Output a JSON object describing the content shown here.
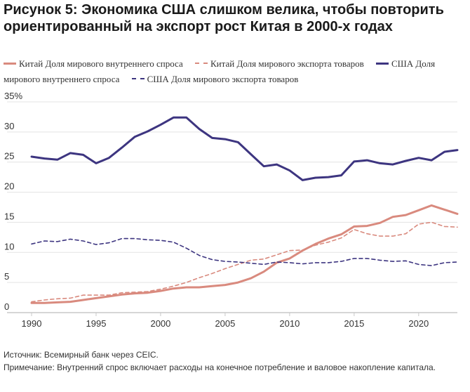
{
  "header": {
    "title": "Рисунок 5: Экономика США слишком велика, чтобы повторить ориентированный на экспорт рост Китая в 2000-х годах"
  },
  "footer": {
    "source": "Источник: Всемирный банк через CEIC.",
    "note": "Примечание: Внутренний спрос включает расходы на конечное потребление и валовое накопление капитала."
  },
  "colors": {
    "china": "#d98a7e",
    "usa": "#3d3580",
    "axis": "#c8c8c8",
    "grid": "#e3e3e3"
  },
  "chart_data": {
    "type": "line",
    "title": "",
    "xlabel": "",
    "ylabel": "",
    "xlim": [
      1990,
      2023
    ],
    "ylim": [
      0,
      35
    ],
    "grid": "horizontal",
    "legend_position": "top",
    "x_ticks": [
      "1990",
      "1995",
      "2000",
      "2005",
      "2010",
      "2015",
      "2020"
    ],
    "y_ticks": [
      "35%",
      "30",
      "25",
      "20",
      "15",
      "10",
      "5",
      "0"
    ],
    "y_tick_values": [
      35,
      30,
      25,
      20,
      15,
      10,
      5,
      0
    ],
    "x_tick_values": [
      1990,
      1995,
      2000,
      2005,
      2010,
      2015,
      2020
    ],
    "x": [
      1990,
      1991,
      1992,
      1993,
      1994,
      1995,
      1996,
      1997,
      1998,
      1999,
      2000,
      2001,
      2002,
      2003,
      2004,
      2005,
      2006,
      2007,
      2008,
      2009,
      2010,
      2011,
      2012,
      2013,
      2014,
      2015,
      2016,
      2017,
      2018,
      2019,
      2020,
      2021,
      2022,
      2023
    ],
    "series": [
      {
        "name": "Китай Доля мирового внутреннего спроса",
        "style": "solid",
        "color": "#d98a7e",
        "values": [
          1.6,
          1.6,
          1.7,
          1.8,
          2.1,
          2.4,
          2.7,
          3.0,
          3.2,
          3.3,
          3.6,
          4.0,
          4.2,
          4.2,
          4.4,
          4.6,
          5.0,
          5.7,
          6.8,
          8.3,
          9.0,
          10.3,
          11.4,
          12.3,
          13.0,
          14.3,
          14.4,
          14.9,
          15.9,
          16.2,
          17.0,
          17.8,
          17.1,
          16.4
        ]
      },
      {
        "name": "Китай Доля мирового экспорта товаров",
        "style": "dashed",
        "color": "#d98a7e",
        "values": [
          1.8,
          2.1,
          2.3,
          2.4,
          2.9,
          2.9,
          2.9,
          3.3,
          3.4,
          3.5,
          3.9,
          4.4,
          5.0,
          5.8,
          6.5,
          7.3,
          8.0,
          8.7,
          8.9,
          9.6,
          10.3,
          10.4,
          11.2,
          11.7,
          12.4,
          13.8,
          13.1,
          12.7,
          12.7,
          13.1,
          14.7,
          15.0,
          14.3,
          14.2
        ]
      },
      {
        "name": "США Доля мирового внутреннего спроса",
        "style": "solid",
        "color": "#3d3580",
        "values": [
          25.9,
          25.6,
          25.4,
          26.5,
          26.2,
          24.8,
          25.7,
          27.4,
          29.2,
          30.1,
          31.2,
          32.4,
          32.4,
          30.5,
          29.0,
          28.8,
          28.3,
          26.3,
          24.3,
          24.6,
          23.6,
          22.0,
          22.4,
          22.5,
          22.8,
          25.1,
          25.3,
          24.8,
          24.6,
          25.2,
          25.7,
          25.3,
          26.7,
          27.0
        ]
      },
      {
        "name": "США Доля мирового экспорта товаров",
        "style": "dashed",
        "color": "#3d3580",
        "values": [
          11.4,
          11.9,
          11.8,
          12.2,
          11.9,
          11.3,
          11.6,
          12.3,
          12.3,
          12.1,
          12.0,
          11.7,
          10.7,
          9.5,
          8.8,
          8.5,
          8.4,
          8.2,
          8.0,
          8.4,
          8.3,
          8.1,
          8.3,
          8.3,
          8.5,
          9.0,
          9.0,
          8.7,
          8.5,
          8.6,
          8.0,
          7.8,
          8.3,
          8.4
        ]
      }
    ]
  }
}
